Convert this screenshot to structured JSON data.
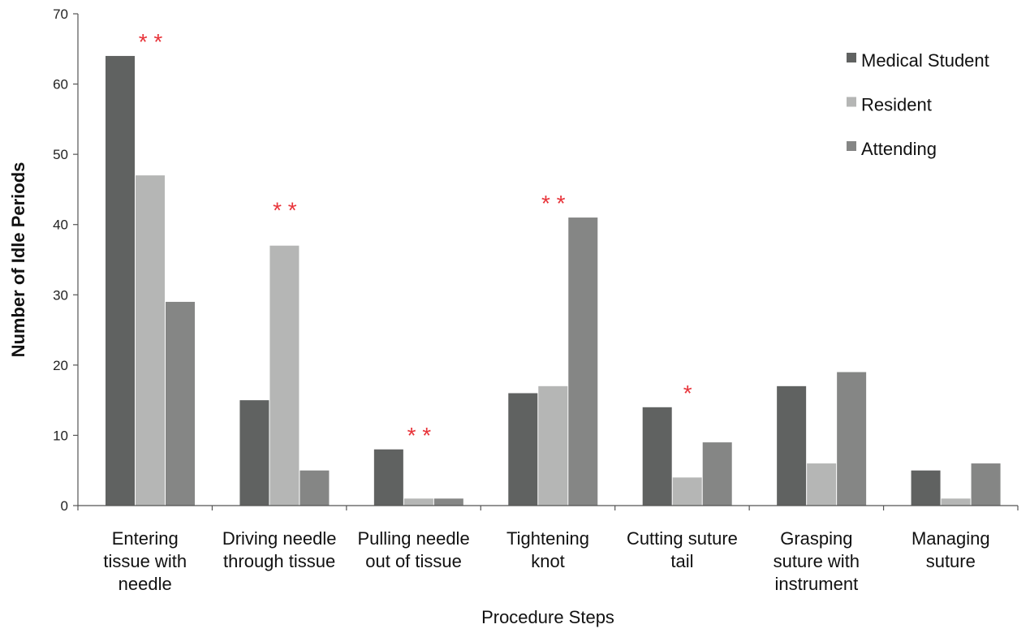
{
  "chart_data": {
    "type": "bar",
    "title": "",
    "xlabel": "Procedure Steps",
    "ylabel": "Number of Idle Periods",
    "ylim": [
      0,
      70
    ],
    "yticks": [
      0,
      10,
      20,
      30,
      40,
      50,
      60,
      70
    ],
    "categories": [
      [
        "Entering",
        "tissue with",
        "needle"
      ],
      [
        "Driving needle",
        "through tissue"
      ],
      [
        "Pulling needle",
        "out of tissue"
      ],
      [
        "Tightening",
        "knot"
      ],
      [
        "Cutting suture",
        "tail"
      ],
      [
        "Grasping",
        "suture with",
        "instrument"
      ],
      [
        "Managing",
        "suture"
      ]
    ],
    "series": [
      {
        "name": "Medical Student",
        "color": "#606261",
        "values": [
          64,
          15,
          8,
          16,
          14,
          17,
          5
        ]
      },
      {
        "name": "Resident",
        "color": "#b5b6b5",
        "values": [
          47,
          37,
          1,
          17,
          4,
          6,
          1
        ]
      },
      {
        "name": "Attending",
        "color": "#858685",
        "values": [
          29,
          5,
          1,
          41,
          9,
          19,
          6
        ]
      }
    ],
    "significance": [
      {
        "category_index": 0,
        "marker": "**",
        "level": 67
      },
      {
        "category_index": 1,
        "marker": "**",
        "level": 43
      },
      {
        "category_index": 2,
        "marker": "**",
        "level": 11
      },
      {
        "category_index": 3,
        "marker": "**",
        "level": 44
      },
      {
        "category_index": 4,
        "marker": "*",
        "level": 17
      }
    ],
    "significance_color": "#e8343a",
    "legend_position": "top-right",
    "grid": false
  }
}
